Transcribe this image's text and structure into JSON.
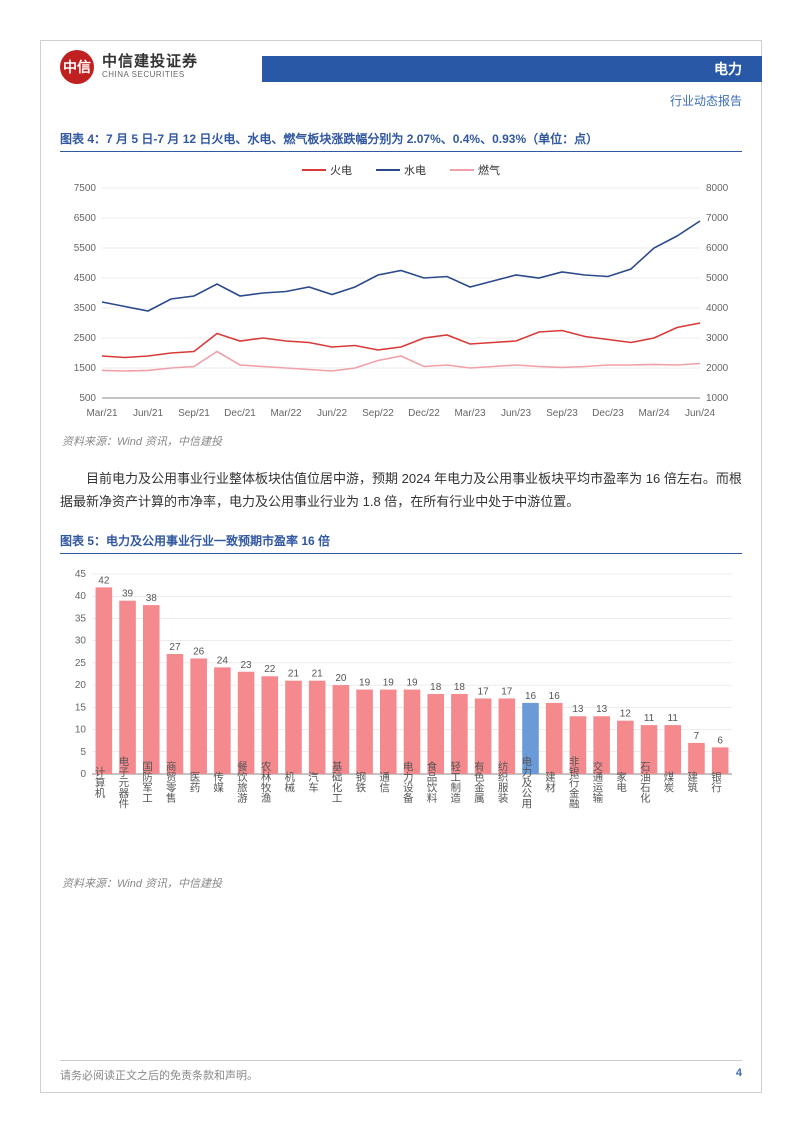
{
  "header": {
    "company_cn": "中信建投证券",
    "company_en": "CHINA SECURITIES",
    "logo_text": "中信",
    "sector": "电力",
    "report_type": "行业动态报告",
    "header_color": "#2858a6"
  },
  "chart4": {
    "title": "图表 4：7 月 5 日-7 月 12 日火电、水电、燃气板块涨跌幅分别为 2.07%、0.4%、0.93%（单位：点）",
    "type": "line",
    "background_color": "#ffffff",
    "grid_color": "#d8d8d8",
    "legend": [
      {
        "label": "火电",
        "color": "#d83a3a"
      },
      {
        "label": "水电",
        "color": "#2b4a8c"
      },
      {
        "label": "燃气",
        "color": "#f0a0a8"
      }
    ],
    "x_categories": [
      "Mar/21",
      "Jun/21",
      "Sep/21",
      "Dec/21",
      "Mar/22",
      "Jun/22",
      "Sep/22",
      "Dec/22",
      "Mar/23",
      "Jun/23",
      "Sep/23",
      "Dec/23",
      "Mar/24",
      "Jun/24"
    ],
    "y_left": {
      "min": 500,
      "max": 7500,
      "step": 1000
    },
    "y_right": {
      "min": 1000,
      "max": 8000,
      "step": 1000
    },
    "line_width": 1.6,
    "series": {
      "huo": [
        1900,
        1850,
        1900,
        2000,
        2050,
        2650,
        2400,
        2500,
        2400,
        2350,
        2200,
        2250,
        2100,
        2200,
        2500,
        2600,
        2300,
        2350,
        2400,
        2700,
        2750,
        2550,
        2450,
        2350,
        2500,
        2850,
        3000
      ],
      "shui": [
        4200,
        4050,
        3900,
        4300,
        4400,
        4800,
        4400,
        4500,
        4550,
        4700,
        4450,
        4700,
        5100,
        5250,
        5000,
        5050,
        4700,
        4900,
        5100,
        5000,
        5200,
        5100,
        5050,
        5300,
        6000,
        6400,
        6900
      ],
      "ranqi": [
        1420,
        1400,
        1420,
        1500,
        1550,
        2050,
        1600,
        1550,
        1500,
        1450,
        1400,
        1500,
        1750,
        1900,
        1550,
        1600,
        1500,
        1550,
        1600,
        1550,
        1520,
        1550,
        1600,
        1600,
        1620,
        1600,
        1650
      ]
    },
    "source": "资料来源：Wind 资讯，中信建投"
  },
  "body_text": "目前电力及公用事业行业整体板块估值位居中游，预期 2024 年电力及公用事业板块平均市盈率为 16 倍左右。而根据最新净资产计算的市净率，电力及公用事业行业为 1.8 倍，在所有行业中处于中游位置。",
  "chart5": {
    "title": "图表 5：电力及公用事业行业一致预期市盈率 16 倍",
    "type": "bar",
    "background_color": "#ffffff",
    "grid_color": "#d8d8d8",
    "bar_color_default": "#f48a8e",
    "bar_color_highlight": "#6a9bd8",
    "highlight_index": 18,
    "y": {
      "min": 0,
      "max": 45,
      "step": 5
    },
    "label_fontsize": 10,
    "categories": [
      "计算机",
      "电子元器件",
      "国防军工",
      "商贸零售",
      "医药",
      "传媒",
      "餐饮旅游",
      "农林牧渔",
      "机械",
      "汽车",
      "基础化工",
      "钢铁",
      "通信",
      "电力设备",
      "食品饮料",
      "轻工制造",
      "有色金属",
      "纺织服装",
      "电力及公用",
      "建材",
      "非银行金融",
      "交通运输",
      "家电",
      "石油石化",
      "煤炭",
      "建筑",
      "银行"
    ],
    "values": [
      42,
      39,
      38,
      27,
      26,
      24,
      23,
      22,
      21,
      21,
      20,
      19,
      19,
      19,
      18,
      18,
      17,
      17,
      16,
      16,
      13,
      13,
      12,
      11,
      11,
      7,
      6
    ],
    "source": "资料来源：Wind 资讯，中信建投"
  },
  "footer": {
    "disclaimer": "请务必阅读正文之后的免责条款和声明。",
    "page": "4"
  }
}
